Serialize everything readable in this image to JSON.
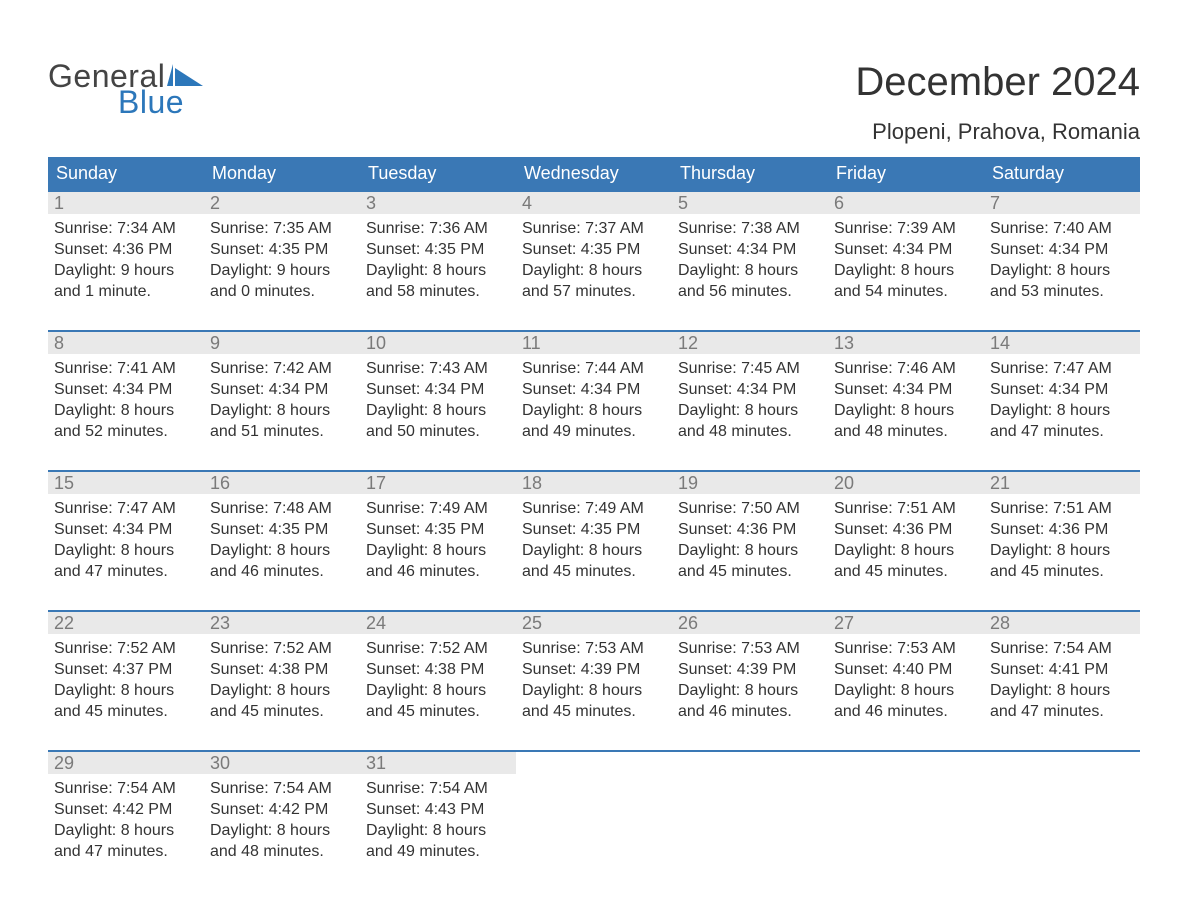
{
  "logo": {
    "word1": "General",
    "word2": "Blue",
    "word1_color": "#444444",
    "word2_color": "#2c77ba",
    "flag_color": "#2c77ba"
  },
  "header": {
    "month_title": "December 2024",
    "location": "Plopeni, Prahova, Romania"
  },
  "colors": {
    "header_bg": "#3a78b5",
    "header_text": "#ffffff",
    "week_border": "#3a78b5",
    "daynum_bg": "#e9e9e9",
    "daynum_text": "#7a7a7a",
    "body_text": "#333333",
    "page_bg": "#ffffff"
  },
  "weekdays": [
    "Sunday",
    "Monday",
    "Tuesday",
    "Wednesday",
    "Thursday",
    "Friday",
    "Saturday"
  ],
  "weeks": [
    [
      {
        "n": "1",
        "sunrise": "Sunrise: 7:34 AM",
        "sunset": "Sunset: 4:36 PM",
        "d1": "Daylight: 9 hours",
        "d2": "and 1 minute."
      },
      {
        "n": "2",
        "sunrise": "Sunrise: 7:35 AM",
        "sunset": "Sunset: 4:35 PM",
        "d1": "Daylight: 9 hours",
        "d2": "and 0 minutes."
      },
      {
        "n": "3",
        "sunrise": "Sunrise: 7:36 AM",
        "sunset": "Sunset: 4:35 PM",
        "d1": "Daylight: 8 hours",
        "d2": "and 58 minutes."
      },
      {
        "n": "4",
        "sunrise": "Sunrise: 7:37 AM",
        "sunset": "Sunset: 4:35 PM",
        "d1": "Daylight: 8 hours",
        "d2": "and 57 minutes."
      },
      {
        "n": "5",
        "sunrise": "Sunrise: 7:38 AM",
        "sunset": "Sunset: 4:34 PM",
        "d1": "Daylight: 8 hours",
        "d2": "and 56 minutes."
      },
      {
        "n": "6",
        "sunrise": "Sunrise: 7:39 AM",
        "sunset": "Sunset: 4:34 PM",
        "d1": "Daylight: 8 hours",
        "d2": "and 54 minutes."
      },
      {
        "n": "7",
        "sunrise": "Sunrise: 7:40 AM",
        "sunset": "Sunset: 4:34 PM",
        "d1": "Daylight: 8 hours",
        "d2": "and 53 minutes."
      }
    ],
    [
      {
        "n": "8",
        "sunrise": "Sunrise: 7:41 AM",
        "sunset": "Sunset: 4:34 PM",
        "d1": "Daylight: 8 hours",
        "d2": "and 52 minutes."
      },
      {
        "n": "9",
        "sunrise": "Sunrise: 7:42 AM",
        "sunset": "Sunset: 4:34 PM",
        "d1": "Daylight: 8 hours",
        "d2": "and 51 minutes."
      },
      {
        "n": "10",
        "sunrise": "Sunrise: 7:43 AM",
        "sunset": "Sunset: 4:34 PM",
        "d1": "Daylight: 8 hours",
        "d2": "and 50 minutes."
      },
      {
        "n": "11",
        "sunrise": "Sunrise: 7:44 AM",
        "sunset": "Sunset: 4:34 PM",
        "d1": "Daylight: 8 hours",
        "d2": "and 49 minutes."
      },
      {
        "n": "12",
        "sunrise": "Sunrise: 7:45 AM",
        "sunset": "Sunset: 4:34 PM",
        "d1": "Daylight: 8 hours",
        "d2": "and 48 minutes."
      },
      {
        "n": "13",
        "sunrise": "Sunrise: 7:46 AM",
        "sunset": "Sunset: 4:34 PM",
        "d1": "Daylight: 8 hours",
        "d2": "and 48 minutes."
      },
      {
        "n": "14",
        "sunrise": "Sunrise: 7:47 AM",
        "sunset": "Sunset: 4:34 PM",
        "d1": "Daylight: 8 hours",
        "d2": "and 47 minutes."
      }
    ],
    [
      {
        "n": "15",
        "sunrise": "Sunrise: 7:47 AM",
        "sunset": "Sunset: 4:34 PM",
        "d1": "Daylight: 8 hours",
        "d2": "and 47 minutes."
      },
      {
        "n": "16",
        "sunrise": "Sunrise: 7:48 AM",
        "sunset": "Sunset: 4:35 PM",
        "d1": "Daylight: 8 hours",
        "d2": "and 46 minutes."
      },
      {
        "n": "17",
        "sunrise": "Sunrise: 7:49 AM",
        "sunset": "Sunset: 4:35 PM",
        "d1": "Daylight: 8 hours",
        "d2": "and 46 minutes."
      },
      {
        "n": "18",
        "sunrise": "Sunrise: 7:49 AM",
        "sunset": "Sunset: 4:35 PM",
        "d1": "Daylight: 8 hours",
        "d2": "and 45 minutes."
      },
      {
        "n": "19",
        "sunrise": "Sunrise: 7:50 AM",
        "sunset": "Sunset: 4:36 PM",
        "d1": "Daylight: 8 hours",
        "d2": "and 45 minutes."
      },
      {
        "n": "20",
        "sunrise": "Sunrise: 7:51 AM",
        "sunset": "Sunset: 4:36 PM",
        "d1": "Daylight: 8 hours",
        "d2": "and 45 minutes."
      },
      {
        "n": "21",
        "sunrise": "Sunrise: 7:51 AM",
        "sunset": "Sunset: 4:36 PM",
        "d1": "Daylight: 8 hours",
        "d2": "and 45 minutes."
      }
    ],
    [
      {
        "n": "22",
        "sunrise": "Sunrise: 7:52 AM",
        "sunset": "Sunset: 4:37 PM",
        "d1": "Daylight: 8 hours",
        "d2": "and 45 minutes."
      },
      {
        "n": "23",
        "sunrise": "Sunrise: 7:52 AM",
        "sunset": "Sunset: 4:38 PM",
        "d1": "Daylight: 8 hours",
        "d2": "and 45 minutes."
      },
      {
        "n": "24",
        "sunrise": "Sunrise: 7:52 AM",
        "sunset": "Sunset: 4:38 PM",
        "d1": "Daylight: 8 hours",
        "d2": "and 45 minutes."
      },
      {
        "n": "25",
        "sunrise": "Sunrise: 7:53 AM",
        "sunset": "Sunset: 4:39 PM",
        "d1": "Daylight: 8 hours",
        "d2": "and 45 minutes."
      },
      {
        "n": "26",
        "sunrise": "Sunrise: 7:53 AM",
        "sunset": "Sunset: 4:39 PM",
        "d1": "Daylight: 8 hours",
        "d2": "and 46 minutes."
      },
      {
        "n": "27",
        "sunrise": "Sunrise: 7:53 AM",
        "sunset": "Sunset: 4:40 PM",
        "d1": "Daylight: 8 hours",
        "d2": "and 46 minutes."
      },
      {
        "n": "28",
        "sunrise": "Sunrise: 7:54 AM",
        "sunset": "Sunset: 4:41 PM",
        "d1": "Daylight: 8 hours",
        "d2": "and 47 minutes."
      }
    ],
    [
      {
        "n": "29",
        "sunrise": "Sunrise: 7:54 AM",
        "sunset": "Sunset: 4:42 PM",
        "d1": "Daylight: 8 hours",
        "d2": "and 47 minutes."
      },
      {
        "n": "30",
        "sunrise": "Sunrise: 7:54 AM",
        "sunset": "Sunset: 4:42 PM",
        "d1": "Daylight: 8 hours",
        "d2": "and 48 minutes."
      },
      {
        "n": "31",
        "sunrise": "Sunrise: 7:54 AM",
        "sunset": "Sunset: 4:43 PM",
        "d1": "Daylight: 8 hours",
        "d2": "and 49 minutes."
      },
      null,
      null,
      null,
      null
    ]
  ]
}
